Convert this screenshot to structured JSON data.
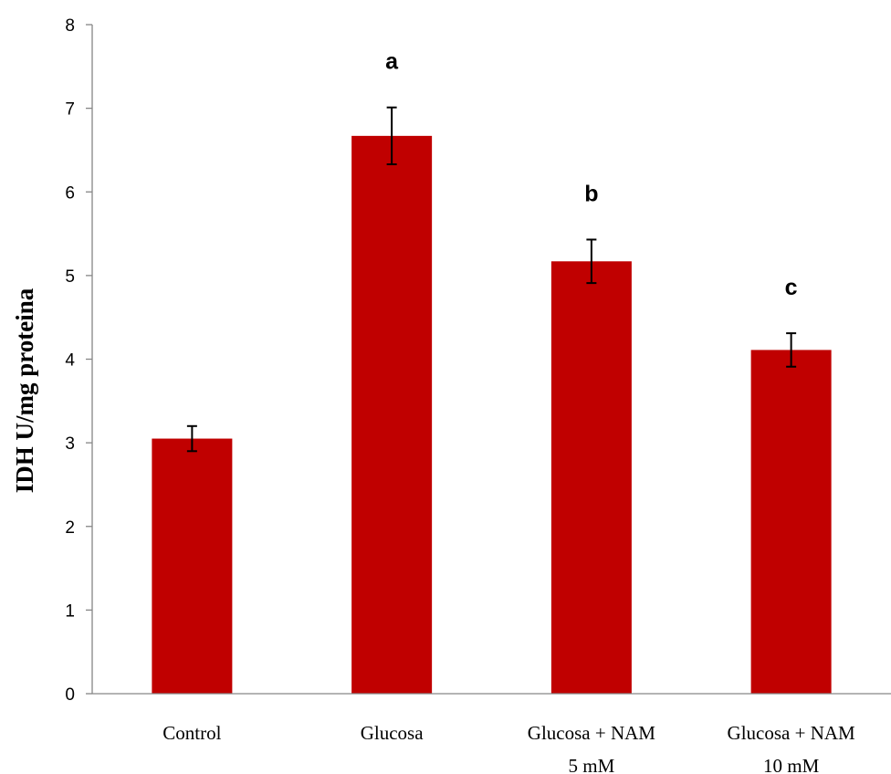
{
  "chart_data": {
    "type": "bar",
    "categories": [
      [
        "Control"
      ],
      [
        "Glucosa"
      ],
      [
        "Glucosa + NAM",
        "5 mM"
      ],
      [
        "Glucosa + NAM",
        "10 mM"
      ]
    ],
    "values": [
      3.05,
      6.67,
      5.17,
      4.11
    ],
    "errors": [
      0.15,
      0.34,
      0.26,
      0.2
    ],
    "annotations": [
      "",
      "a",
      "b",
      "c"
    ],
    "ylabel": "IDH  U/mg proteina",
    "xlabel": "",
    "title": "",
    "ylim": [
      0,
      8
    ],
    "yticks": [
      "0",
      "1",
      "2",
      "3",
      "4",
      "5",
      "6",
      "7",
      "8"
    ],
    "grid": false,
    "legend": "none",
    "bar_color": "#C00000",
    "axis_color": "#868686"
  }
}
